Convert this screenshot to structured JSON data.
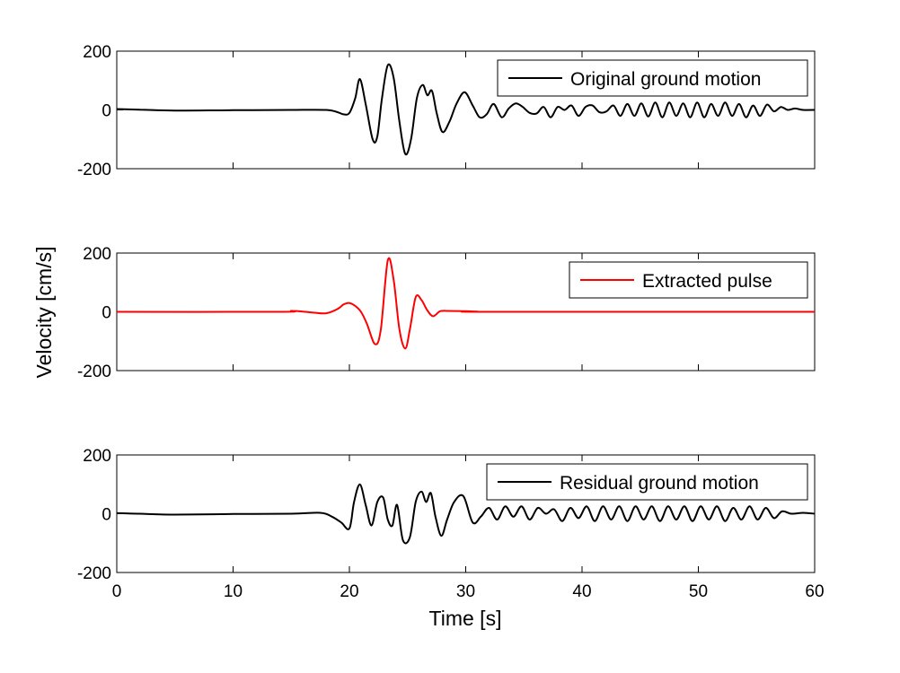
{
  "figure": {
    "ylabel": "Velocity [cm/s]",
    "xlabel": "Time [s]"
  },
  "chart_data": [
    {
      "type": "line",
      "legend": "Original ground motion",
      "legend_position": "top-right",
      "color": "#000000",
      "xlim": [
        0,
        60
      ],
      "ylim": [
        -200,
        200
      ],
      "yticks": [
        -200,
        0,
        200
      ],
      "xticks": [
        0,
        10,
        20,
        30,
        40,
        50,
        60
      ],
      "show_xtick_labels": false,
      "series": [
        {
          "name": "Original ground motion",
          "x": [
            0,
            2,
            5,
            10,
            15,
            18,
            19,
            19.5,
            20,
            20.5,
            20.9,
            21.4,
            22,
            22.4,
            22.8,
            23.3,
            23.8,
            24.3,
            24.8,
            25.3,
            25.8,
            26.3,
            26.7,
            27.1,
            27.5,
            28.0,
            28.6,
            29.2,
            29.9,
            30.6,
            31.2,
            31.8,
            32.4,
            33.1,
            33.7,
            34.3,
            34.9,
            35.5,
            36.1,
            36.7,
            37.3,
            37.9,
            38.5,
            39.1,
            39.7,
            40.3,
            40.9,
            41.5,
            42.1,
            42.7,
            43.3,
            43.9,
            44.5,
            45.1,
            45.7,
            46.3,
            46.9,
            47.5,
            48.1,
            48.7,
            49.3,
            49.9,
            50.5,
            51.1,
            51.7,
            52.3,
            52.9,
            53.5,
            54.1,
            54.7,
            55.3,
            55.9,
            56.5,
            57.1,
            57.7,
            58.3,
            59,
            60
          ],
          "y": [
            3,
            1,
            -2,
            -1,
            0,
            0,
            -8,
            -15,
            -10,
            40,
            105,
            20,
            -100,
            -90,
            40,
            152,
            110,
            -40,
            -150,
            -100,
            40,
            85,
            50,
            65,
            -10,
            -75,
            -40,
            20,
            60,
            15,
            -25,
            -15,
            20,
            -25,
            5,
            22,
            10,
            -10,
            -12,
            10,
            -25,
            10,
            0,
            15,
            -20,
            10,
            15,
            -8,
            -5,
            15,
            -20,
            20,
            -20,
            22,
            -22,
            25,
            -25,
            25,
            -20,
            22,
            -25,
            25,
            -25,
            20,
            -20,
            25,
            -20,
            20,
            -25,
            15,
            -20,
            18,
            -5,
            10,
            0,
            5,
            0,
            0
          ]
        }
      ]
    },
    {
      "type": "line",
      "legend": "Extracted pulse",
      "legend_position": "top-right",
      "color": "#ff0000",
      "xlim": [
        0,
        60
      ],
      "ylim": [
        -200,
        200
      ],
      "yticks": [
        -200,
        0,
        200
      ],
      "xticks": [
        0,
        10,
        20,
        30,
        40,
        50,
        60
      ],
      "show_xtick_labels": false,
      "series": [
        {
          "name": "Extracted pulse",
          "x": [
            0,
            14,
            15,
            16,
            17,
            18,
            19,
            19.5,
            20,
            20.5,
            21,
            21.5,
            22.2,
            22.7,
            23.3,
            23.8,
            24.3,
            24.8,
            25.2,
            25.7,
            26.2,
            26.7,
            27.2,
            27.8,
            28.5,
            30,
            31,
            32,
            60
          ],
          "y": [
            0,
            0,
            3,
            1,
            -3,
            -5,
            10,
            25,
            30,
            20,
            0,
            -40,
            -110,
            -60,
            175,
            110,
            -60,
            -125,
            -60,
            50,
            40,
            5,
            -15,
            2,
            3,
            2,
            1,
            0,
            0
          ]
        }
      ]
    },
    {
      "type": "line",
      "legend": "Residual ground motion",
      "legend_position": "top-right",
      "color": "#000000",
      "xlim": [
        0,
        60
      ],
      "ylim": [
        -200,
        200
      ],
      "yticks": [
        -200,
        0,
        200
      ],
      "xticks": [
        0,
        10,
        20,
        30,
        40,
        50,
        60
      ],
      "xtick_labels": [
        "0",
        "10",
        "20",
        "30",
        "40",
        "50",
        "60"
      ],
      "show_xtick_labels": true,
      "series": [
        {
          "name": "Residual ground motion",
          "x": [
            0,
            2,
            5,
            10,
            15,
            17.5,
            18.5,
            19.3,
            20,
            20.4,
            20.9,
            21.4,
            21.9,
            22.4,
            22.9,
            23.3,
            23.7,
            24.1,
            24.6,
            25.2,
            25.7,
            26.2,
            26.6,
            27,
            27.4,
            27.9,
            28.4,
            29,
            29.8,
            30.6,
            31.3,
            32,
            32.7,
            33.4,
            34.1,
            34.8,
            35.5,
            36.2,
            36.9,
            37.6,
            38.3,
            39,
            39.7,
            40.4,
            41.1,
            41.8,
            42.5,
            43.2,
            43.9,
            44.6,
            45.3,
            46,
            46.7,
            47.4,
            48.1,
            48.8,
            49.5,
            50.2,
            50.9,
            51.6,
            52.3,
            53,
            53.7,
            54.4,
            55.1,
            55.8,
            56.5,
            57.2,
            58,
            59,
            60
          ],
          "y": [
            2,
            0,
            -3,
            -1,
            0,
            3,
            -10,
            -30,
            -50,
            40,
            100,
            30,
            -40,
            40,
            55,
            -20,
            -40,
            30,
            -90,
            -80,
            40,
            75,
            40,
            70,
            -10,
            -75,
            -20,
            40,
            60,
            -30,
            -10,
            20,
            -20,
            25,
            -10,
            25,
            -20,
            20,
            0,
            15,
            -25,
            20,
            -15,
            25,
            -25,
            25,
            -20,
            25,
            -25,
            25,
            -20,
            25,
            -25,
            25,
            -20,
            25,
            -25,
            25,
            -20,
            25,
            -25,
            20,
            -20,
            25,
            -20,
            20,
            -15,
            8,
            0,
            3,
            0
          ]
        }
      ]
    }
  ]
}
